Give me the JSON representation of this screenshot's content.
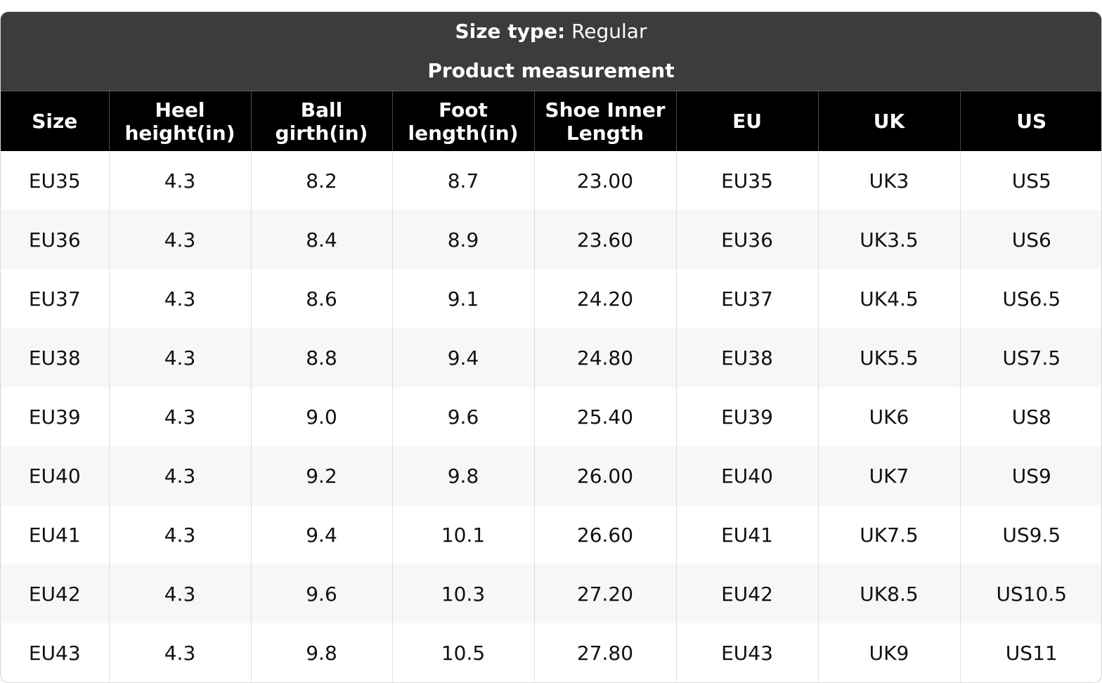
{
  "header": {
    "size_type_label": "Size type:",
    "size_type_value": "Regular",
    "subtitle": "Product measurement"
  },
  "table": {
    "columns": [
      {
        "line1": "Size",
        "line2": ""
      },
      {
        "line1": "Heel",
        "line2": "height(in)"
      },
      {
        "line1": "Ball",
        "line2": "girth(in)"
      },
      {
        "line1": "Foot",
        "line2": "length(in)"
      },
      {
        "line1": "Shoe Inner",
        "line2": "Length"
      },
      {
        "line1": "EU",
        "line2": ""
      },
      {
        "line1": "UK",
        "line2": ""
      },
      {
        "line1": "US",
        "line2": ""
      }
    ],
    "rows": [
      [
        "EU35",
        "4.3",
        "8.2",
        "8.7",
        "23.00",
        "EU35",
        "UK3",
        "US5"
      ],
      [
        "EU36",
        "4.3",
        "8.4",
        "8.9",
        "23.60",
        "EU36",
        "UK3.5",
        "US6"
      ],
      [
        "EU37",
        "4.3",
        "8.6",
        "9.1",
        "24.20",
        "EU37",
        "UK4.5",
        "US6.5"
      ],
      [
        "EU38",
        "4.3",
        "8.8",
        "9.4",
        "24.80",
        "EU38",
        "UK5.5",
        "US7.5"
      ],
      [
        "EU39",
        "4.3",
        "9.0",
        "9.6",
        "25.40",
        "EU39",
        "UK6",
        "US8"
      ],
      [
        "EU40",
        "4.3",
        "9.2",
        "9.8",
        "26.00",
        "EU40",
        "UK7",
        "US9"
      ],
      [
        "EU41",
        "4.3",
        "9.4",
        "10.1",
        "26.60",
        "EU41",
        "UK7.5",
        "US9.5"
      ],
      [
        "EU42",
        "4.3",
        "9.6",
        "10.3",
        "27.20",
        "EU42",
        "UK8.5",
        "US10.5"
      ],
      [
        "EU43",
        "4.3",
        "9.8",
        "10.5",
        "27.80",
        "EU43",
        "UK9",
        "US11"
      ]
    ]
  },
  "colors": {
    "top_header_bg": "#3c3c3c",
    "column_header_bg": "#000000",
    "stripe_bg": "#f7f7f7"
  }
}
